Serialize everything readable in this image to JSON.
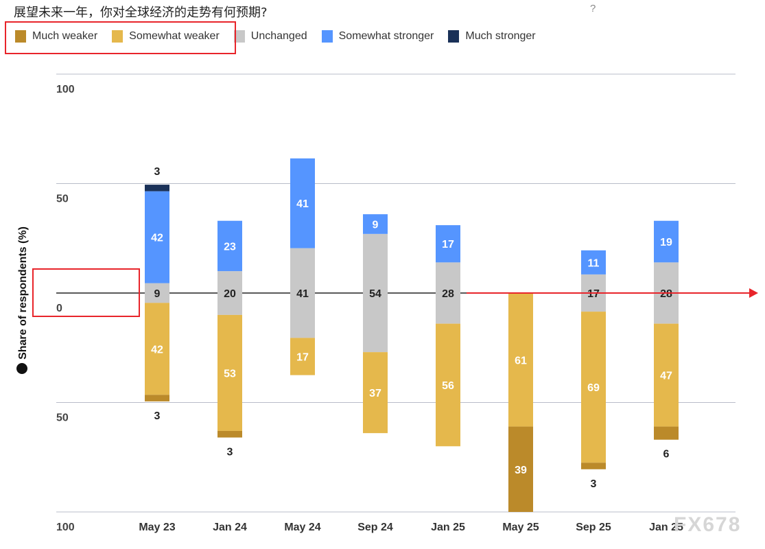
{
  "title": "展望未来一年，你对全球经济的走势有何预期?",
  "help_label": "?",
  "watermark": "FX678",
  "chart_data": {
    "type": "bar",
    "stacking": "diverging",
    "categories": [
      "May 23",
      "Jan 24",
      "May 24",
      "Sep 24",
      "Jan 25",
      "May 25",
      "Sep 25",
      "Jan 25"
    ],
    "series": [
      {
        "name": "Much weaker",
        "color": "#bb8a2a",
        "values": [
          3,
          3,
          0,
          0,
          0,
          39,
          3,
          6
        ]
      },
      {
        "name": "Somewhat weaker",
        "color": "#e5b84c",
        "values": [
          42,
          53,
          17,
          37,
          56,
          61,
          69,
          47
        ]
      },
      {
        "name": "Unchanged",
        "color": "#c8c8c8",
        "values": [
          9,
          20,
          41,
          54,
          28,
          0,
          17,
          28
        ]
      },
      {
        "name": "Somewhat stronger",
        "color": "#5595ff",
        "values": [
          42,
          23,
          41,
          9,
          17,
          0,
          11,
          19
        ]
      },
      {
        "name": "Much stronger",
        "color": "#1a3158",
        "values": [
          3,
          0,
          0,
          0,
          0,
          0,
          0,
          0
        ]
      }
    ],
    "ylabel": "Share of respondents (%)",
    "yticks": [
      "100",
      "50",
      "0",
      "50",
      "100"
    ],
    "ylim": [
      -100,
      100
    ],
    "grid": true,
    "legend": "top-left"
  }
}
